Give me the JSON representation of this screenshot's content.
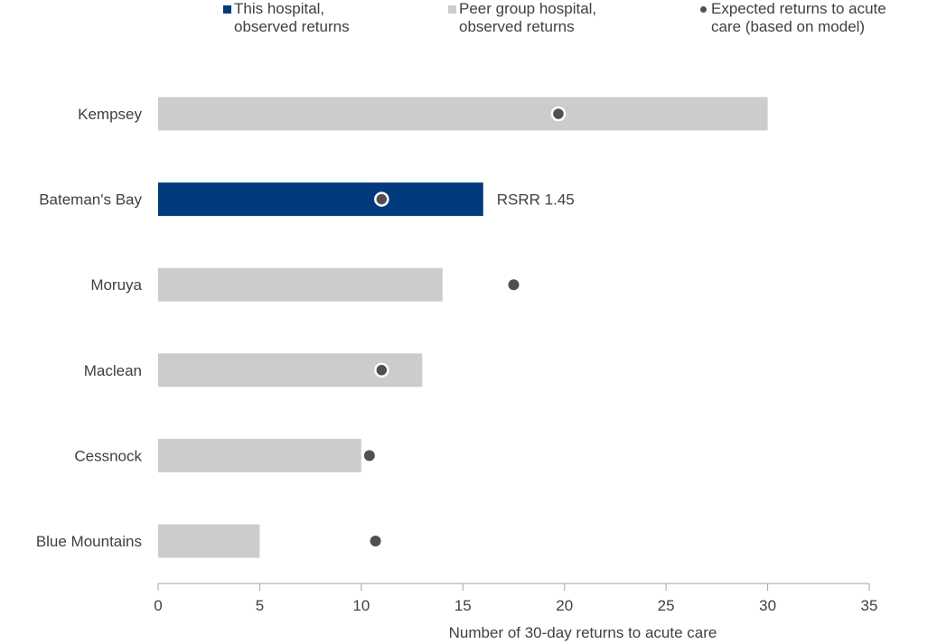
{
  "chart_data": {
    "type": "bar",
    "orientation": "horizontal",
    "categories": [
      "Kempsey",
      "Bateman's Bay",
      "Moruya",
      "Maclean",
      "Cessnock",
      "Blue Mountains"
    ],
    "series": [
      {
        "name": "This hospital, observed returns",
        "kind": "bar",
        "values": [
          null,
          16,
          null,
          null,
          null,
          null
        ]
      },
      {
        "name": "Peer group hospital, observed returns",
        "kind": "bar",
        "values": [
          30,
          null,
          14,
          13,
          10,
          5
        ]
      },
      {
        "name": "Expected returns to acute care (based on model)",
        "kind": "point",
        "values": [
          19.7,
          11.0,
          17.5,
          11.0,
          10.4,
          10.7
        ]
      }
    ],
    "annotations": [
      {
        "category": "Bateman's Bay",
        "text": "RSRR 1.45"
      }
    ],
    "xlabel": "Number of 30-day returns to acute care",
    "ylabel": "",
    "xlim": [
      0,
      35
    ],
    "xticks": [
      "0",
      "5",
      "10",
      "15",
      "20",
      "25",
      "30",
      "35"
    ],
    "grid": false,
    "legend_position": "top",
    "colors": {
      "this_hospital": "#003a7d",
      "peer_group": "#cccccc",
      "expected": "#505050",
      "axis": "#a6a6a6",
      "text": "#404040"
    }
  },
  "legend": [
    {
      "label": "This hospital,\nobserved returns",
      "marker": "square",
      "color": "#003a7d"
    },
    {
      "label": "Peer group hospital,\nobserved returns",
      "marker": "square",
      "color": "#cccccc"
    },
    {
      "label": "Expected returns to acute\ncare (based on model)",
      "marker": "dot",
      "color": "#505050"
    }
  ]
}
